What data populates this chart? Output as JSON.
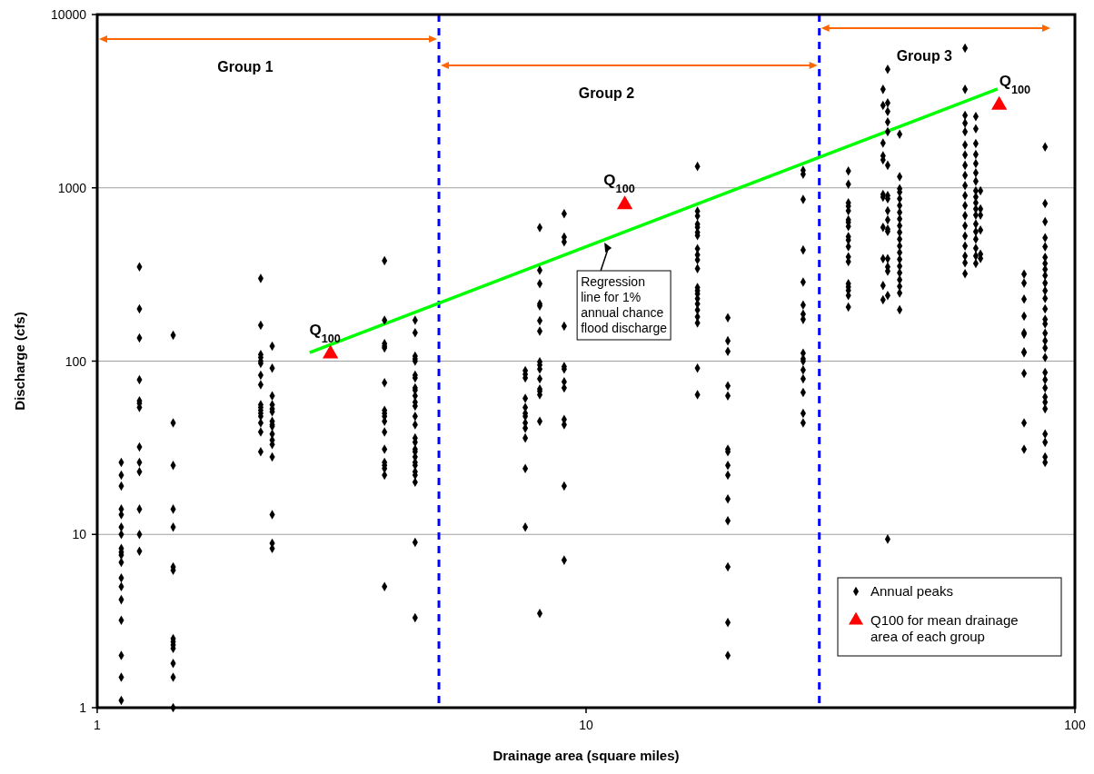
{
  "chart_data": {
    "type": "scatter",
    "xlabel": "Drainage area (square miles)",
    "ylabel": "Discharge (cfs)",
    "log": "xy",
    "xlim": [
      1,
      100
    ],
    "ylim": [
      1,
      10000
    ],
    "xticks": [
      1,
      10,
      100
    ],
    "yticks": [
      1,
      10,
      100,
      1000,
      10000
    ],
    "grid": "y",
    "legend": "bottom right",
    "series": [
      {
        "name": "Annual peaks",
        "color": "#000000",
        "marker": "diamond",
        "x": [
          1.12,
          1.12,
          1.12,
          1.12,
          1.12,
          1.12,
          1.12,
          1.12,
          1.12,
          1.12,
          1.12,
          1.12,
          1.12,
          1.12,
          1.12,
          1.12,
          1.12,
          1.12,
          1.22,
          1.22,
          1.22,
          1.22,
          1.22,
          1.22,
          1.22,
          1.22,
          1.22,
          1.22,
          1.22,
          1.22,
          1.22,
          1.43,
          1.43,
          1.43,
          1.43,
          1.43,
          1.43,
          1.43,
          1.43,
          1.43,
          1.43,
          1.43,
          1.43,
          1.43,
          1.43,
          2.16,
          2.16,
          2.16,
          2.16,
          2.16,
          2.16,
          2.16,
          2.16,
          2.16,
          2.16,
          2.16,
          2.16,
          2.16,
          2.16,
          2.16,
          2.16,
          2.28,
          2.28,
          2.28,
          2.28,
          2.28,
          2.28,
          2.28,
          2.28,
          2.28,
          2.28,
          2.28,
          2.28,
          2.28,
          2.28,
          2.28,
          2.28,
          3.87,
          3.87,
          3.87,
          3.87,
          3.87,
          3.87,
          3.87,
          3.87,
          3.87,
          3.87,
          3.87,
          3.87,
          3.87,
          3.87,
          3.87,
          3.87,
          3.87,
          4.47,
          4.47,
          4.47,
          4.47,
          4.47,
          4.47,
          4.47,
          4.47,
          4.47,
          4.47,
          4.47,
          4.47,
          4.47,
          4.47,
          4.47,
          4.47,
          4.47,
          4.47,
          4.47,
          4.47,
          4.47,
          4.47,
          4.47,
          4.47,
          4.47,
          4.47,
          7.51,
          7.51,
          7.51,
          7.51,
          7.51,
          7.51,
          7.51,
          7.51,
          7.51,
          7.51,
          7.51,
          7.51,
          8.04,
          8.04,
          8.04,
          8.04,
          8.04,
          8.04,
          8.04,
          8.04,
          8.04,
          8.04,
          8.04,
          8.04,
          8.04,
          8.04,
          8.04,
          8.04,
          9.02,
          9.02,
          9.02,
          9.02,
          9.02,
          9.02,
          9.02,
          9.02,
          9.02,
          9.02,
          9.02,
          9.02,
          16.9,
          16.9,
          16.9,
          16.9,
          16.9,
          16.9,
          16.9,
          16.9,
          16.9,
          16.9,
          16.9,
          16.9,
          16.9,
          16.9,
          16.9,
          16.9,
          16.9,
          16.9,
          16.9,
          16.9,
          16.9,
          19.5,
          19.5,
          19.5,
          19.5,
          19.5,
          19.5,
          19.5,
          19.5,
          19.5,
          19.5,
          19.5,
          19.5,
          19.5,
          19.5,
          27.8,
          27.8,
          27.8,
          27.8,
          27.8,
          27.8,
          27.8,
          27.8,
          27.8,
          27.8,
          27.8,
          27.8,
          27.8,
          27.8,
          27.8,
          27.8,
          34.4,
          34.4,
          34.4,
          34.4,
          34.4,
          34.4,
          34.4,
          34.4,
          34.4,
          34.4,
          34.4,
          34.4,
          34.4,
          34.4,
          34.4,
          34.4,
          34.4,
          34.4,
          40.5,
          40.5,
          40.5,
          40.5,
          40.5,
          40.5,
          40.5,
          40.5,
          40.5,
          40.5,
          40.5,
          41.4,
          41.4,
          41.4,
          41.4,
          41.4,
          41.4,
          41.4,
          41.4,
          41.4,
          41.4,
          41.4,
          41.4,
          41.4,
          41.4,
          41.4,
          41.4,
          41.4,
          43.8,
          43.8,
          43.8,
          43.8,
          43.8,
          43.8,
          43.8,
          43.8,
          43.8,
          43.8,
          43.8,
          43.8,
          43.8,
          43.8,
          43.8,
          43.8,
          43.8,
          43.8,
          43.8,
          43.8,
          59.6,
          59.6,
          59.6,
          59.6,
          59.6,
          59.6,
          59.6,
          59.6,
          59.6,
          59.6,
          59.6,
          59.6,
          59.6,
          59.6,
          59.6,
          59.6,
          59.6,
          59.6,
          59.6,
          62.7,
          62.7,
          62.7,
          62.7,
          62.7,
          62.7,
          62.7,
          62.7,
          62.7,
          62.7,
          62.7,
          62.7,
          62.7,
          62.7,
          62.7,
          62.7,
          62.7,
          62.7,
          64.1,
          64.1,
          64.1,
          64.1,
          64.1,
          64.1,
          78.7,
          78.7,
          78.7,
          78.7,
          78.7,
          78.7,
          78.7,
          78.7,
          78.7,
          78.7,
          78.7,
          86.9,
          86.9,
          86.9,
          86.9,
          86.9,
          86.9,
          86.9,
          86.9,
          86.9,
          86.9,
          86.9,
          86.9,
          86.9,
          86.9,
          86.9,
          86.9,
          86.9,
          86.9,
          86.9,
          86.9,
          86.9,
          86.9,
          86.9,
          86.9,
          86.9,
          86.9,
          86.9,
          86.9,
          86.9
        ],
        "values": [
          26,
          22,
          19,
          14,
          13,
          11,
          10,
          8.3,
          7.9,
          7.6,
          6.9,
          5.6,
          5,
          4.2,
          3.2,
          2,
          1.5,
          1.1,
          350,
          200,
          136,
          78,
          59,
          57,
          54,
          32,
          26,
          23,
          14,
          10,
          8,
          141,
          44,
          25,
          14,
          11,
          6.5,
          6.2,
          2.5,
          2.4,
          2.3,
          2.2,
          1.8,
          1.5,
          1,
          300,
          161,
          109,
          105,
          100,
          97,
          83,
          73,
          56,
          54,
          52,
          50,
          48,
          44,
          39,
          30,
          122,
          91,
          63,
          56,
          53,
          51,
          45,
          43,
          42,
          38,
          35,
          33,
          28,
          13,
          8.9,
          8.3,
          380,
          172,
          126,
          122,
          119,
          75,
          52,
          50,
          48,
          45,
          39,
          31,
          26,
          25,
          24,
          22,
          5,
          172,
          146,
          107,
          103,
          100,
          83,
          80,
          70,
          68,
          63,
          58,
          55,
          48,
          43,
          36,
          34,
          31,
          30,
          28,
          26,
          25,
          23,
          22,
          20,
          9,
          3.3,
          88,
          84,
          80,
          61,
          54,
          50,
          48,
          44,
          41,
          36,
          24,
          11,
          590,
          334,
          280,
          214,
          208,
          171,
          149,
          99,
          95,
          90,
          79,
          69,
          67,
          64,
          45,
          3.5,
          708,
          519,
          487,
          159,
          93,
          90,
          76,
          70,
          46,
          43,
          19,
          7.1,
          1330,
          733,
          687,
          617,
          591,
          554,
          530,
          446,
          410,
          384,
          342,
          266,
          255,
          244,
          229,
          214,
          197,
          180,
          166,
          91,
          64,
          178,
          131,
          114,
          72,
          63,
          31,
          30,
          25,
          22,
          16,
          12,
          6.5,
          3.1,
          2,
          1260,
          1200,
          857,
          438,
          286,
          211,
          187,
          174,
          111,
          103,
          100,
          89,
          79,
          66,
          50,
          44,
          1250,
          1050,
          819,
          783,
          738,
          654,
          632,
          598,
          523,
          500,
          458,
          400,
          375,
          280,
          268,
          256,
          239,
          205,
          3700,
          2990,
          1810,
          1530,
          1450,
          915,
          884,
          591,
          390,
          273,
          226,
          4830,
          3090,
          2760,
          2400,
          2110,
          1350,
          903,
          866,
          738,
          653,
          578,
          560,
          390,
          350,
          330,
          239,
          9.4,
          2040,
          1160,
          988,
          944,
          866,
          790,
          722,
          661,
          604,
          553,
          505,
          462,
          423,
          386,
          353,
          323,
          295,
          270,
          247,
          198,
          6400,
          3700,
          2620,
          2360,
          2110,
          1770,
          1550,
          1350,
          1180,
          1030,
          903,
          790,
          691,
          604,
          528,
          462,
          404,
          369,
          320,
          2580,
          2190,
          1800,
          1560,
          1380,
          1220,
          1090,
          962,
          887,
          819,
          755,
          697,
          618,
          558,
          505,
          448,
          405,
          366,
          962,
          755,
          697,
          571,
          414,
          391,
          318,
          282,
          228,
          182,
          146,
          143,
          113,
          112,
          85,
          44,
          31,
          1720,
          812,
          638,
          515,
          457,
          397,
          366,
          338,
          312,
          282,
          255,
          230,
          200,
          174,
          164,
          145,
          131,
          119,
          105,
          86,
          78,
          70,
          62,
          58,
          53,
          38,
          34,
          28,
          26
        ]
      },
      {
        "name": "Q100 for mean drainage area of each group",
        "color": "#ff0000",
        "marker": "triangle",
        "x": [
          3,
          12,
          70
        ],
        "values": [
          110,
          800,
          3000
        ]
      },
      {
        "type": "line",
        "color": "#00ff00",
        "x": [
          2.72,
          69.5
        ],
        "values": [
          112,
          3720
        ]
      }
    ],
    "ref_lines": [
      {
        "axis": "x",
        "value": 5,
        "color": "#0000ff",
        "line_style": "dashed"
      },
      {
        "axis": "x",
        "value": 30,
        "color": "#0000ff",
        "line_style": "dashed"
      }
    ],
    "annotations": [
      "Group 1",
      "Group 2",
      "Group 3",
      {
        "text": "Q$_{100}$",
        "x": 3,
        "y": 110
      },
      {
        "text": "Q$_{100}$",
        "x": 12,
        "y": 800
      },
      {
        "text": "Q$_{100}$",
        "x": 70,
        "y": 3000
      },
      {
        "text": "Regression line for 1% annual chance flood discharge",
        "x": 10.9,
        "y": 495
      }
    ]
  }
}
